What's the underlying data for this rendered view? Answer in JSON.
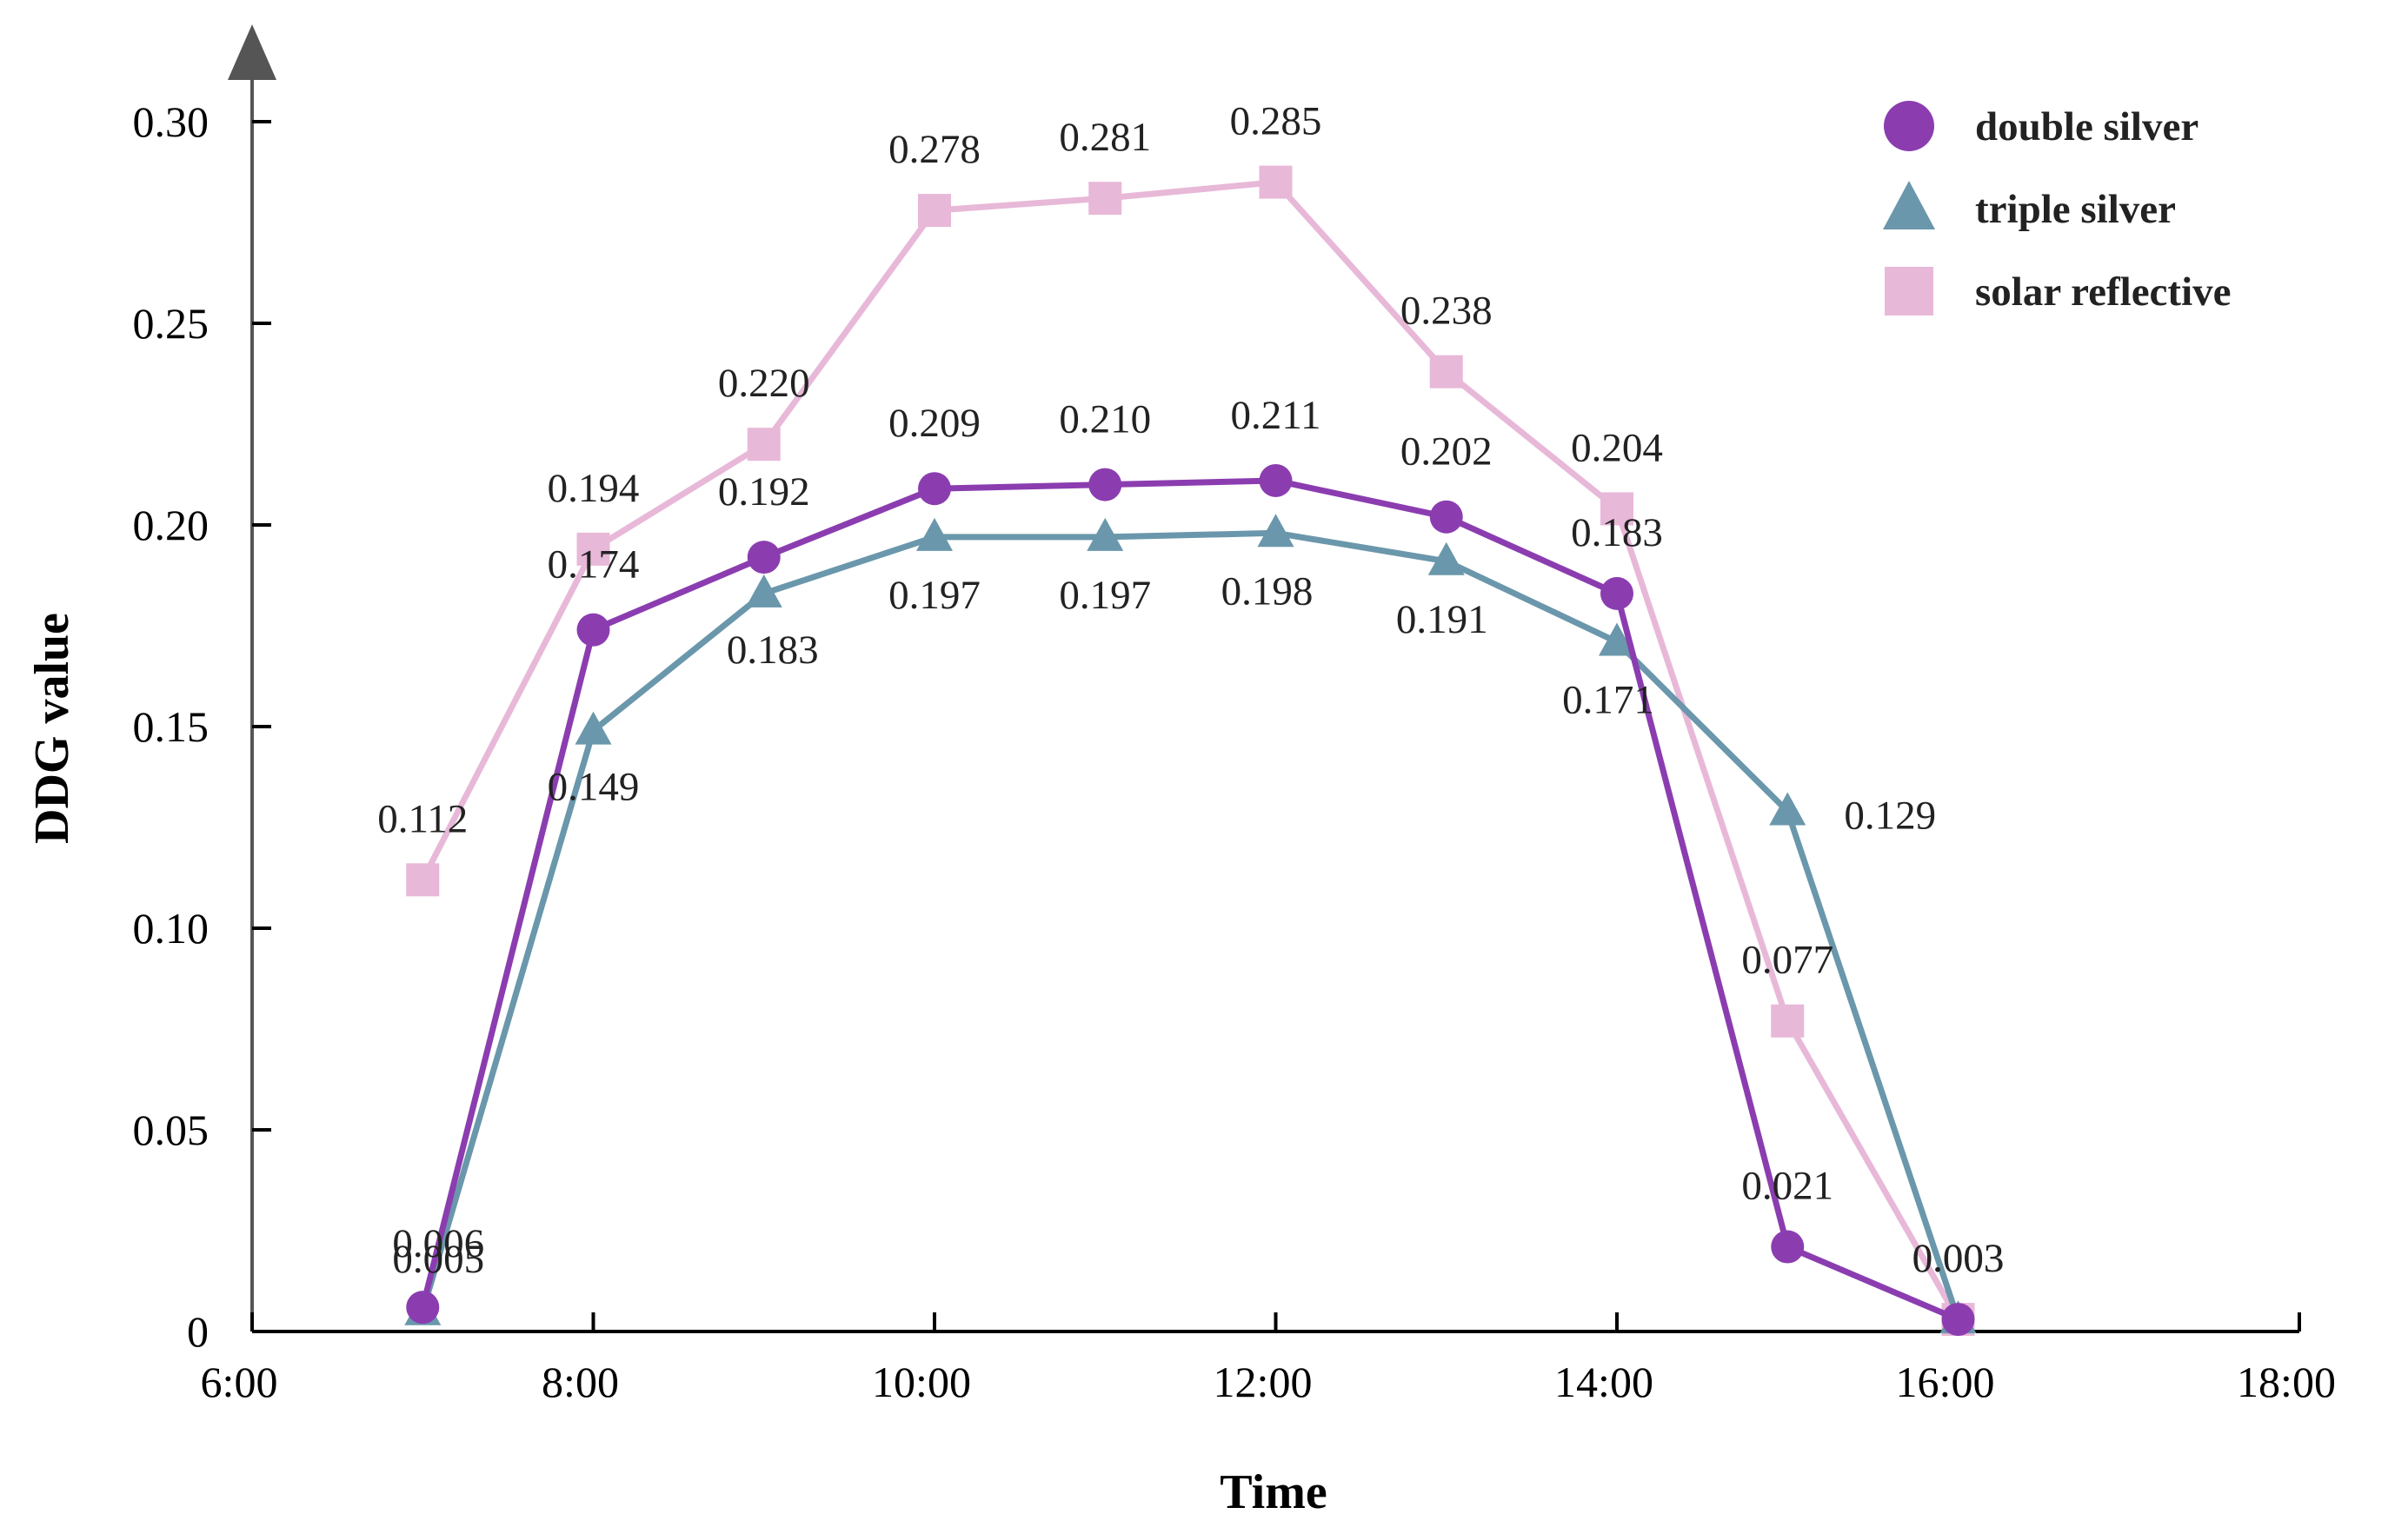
{
  "chart_data": {
    "type": "line",
    "title": "",
    "xlabel": "Time",
    "ylabel": "DDG value",
    "x_ticks": [
      "6:00",
      "8:00",
      "10:00",
      "12:00",
      "14:00",
      "16:00",
      "18:00"
    ],
    "y_ticks": [
      "0",
      "0.05",
      "0.10",
      "0.15",
      "0.20",
      "0.25",
      "0.30"
    ],
    "xlim": [
      6,
      18
    ],
    "ylim": [
      0,
      0.3
    ],
    "grid": false,
    "legend_position": "top-right",
    "x": [
      7,
      8,
      9,
      10,
      11,
      12,
      13,
      14,
      15,
      16
    ],
    "series": [
      {
        "name": "double silver",
        "marker": "circle",
        "color": "#8b3db0",
        "values": [
          0.006,
          0.174,
          0.192,
          0.209,
          0.21,
          0.211,
          0.202,
          0.183,
          0.021,
          0.003
        ],
        "labels": [
          "0.006",
          "0.174",
          "0.192",
          "0.209",
          "0.210",
          "0.211",
          "0.202",
          "0.183",
          "0.021",
          "0.003"
        ]
      },
      {
        "name": "triple silver",
        "marker": "triangle",
        "color": "#6a97ab",
        "values": [
          0.005,
          0.149,
          0.183,
          0.197,
          0.197,
          0.198,
          0.191,
          0.171,
          0.129,
          0.003
        ],
        "labels": [
          "0.005",
          "0.149",
          "0.183",
          "0.197",
          "0.197",
          "0.198",
          "0.191",
          "0.171",
          "0.129",
          "0.003"
        ]
      },
      {
        "name": "solar reflective",
        "marker": "square",
        "color": "#e8b8d8",
        "values": [
          0.112,
          0.194,
          0.22,
          0.278,
          0.281,
          0.285,
          0.238,
          0.204,
          0.077,
          0.003
        ],
        "labels": [
          "0.112",
          "0.194",
          "0.220",
          "0.278",
          "0.281",
          "0.285",
          "0.238",
          "0.204",
          "0.077",
          "0.003"
        ]
      }
    ]
  }
}
